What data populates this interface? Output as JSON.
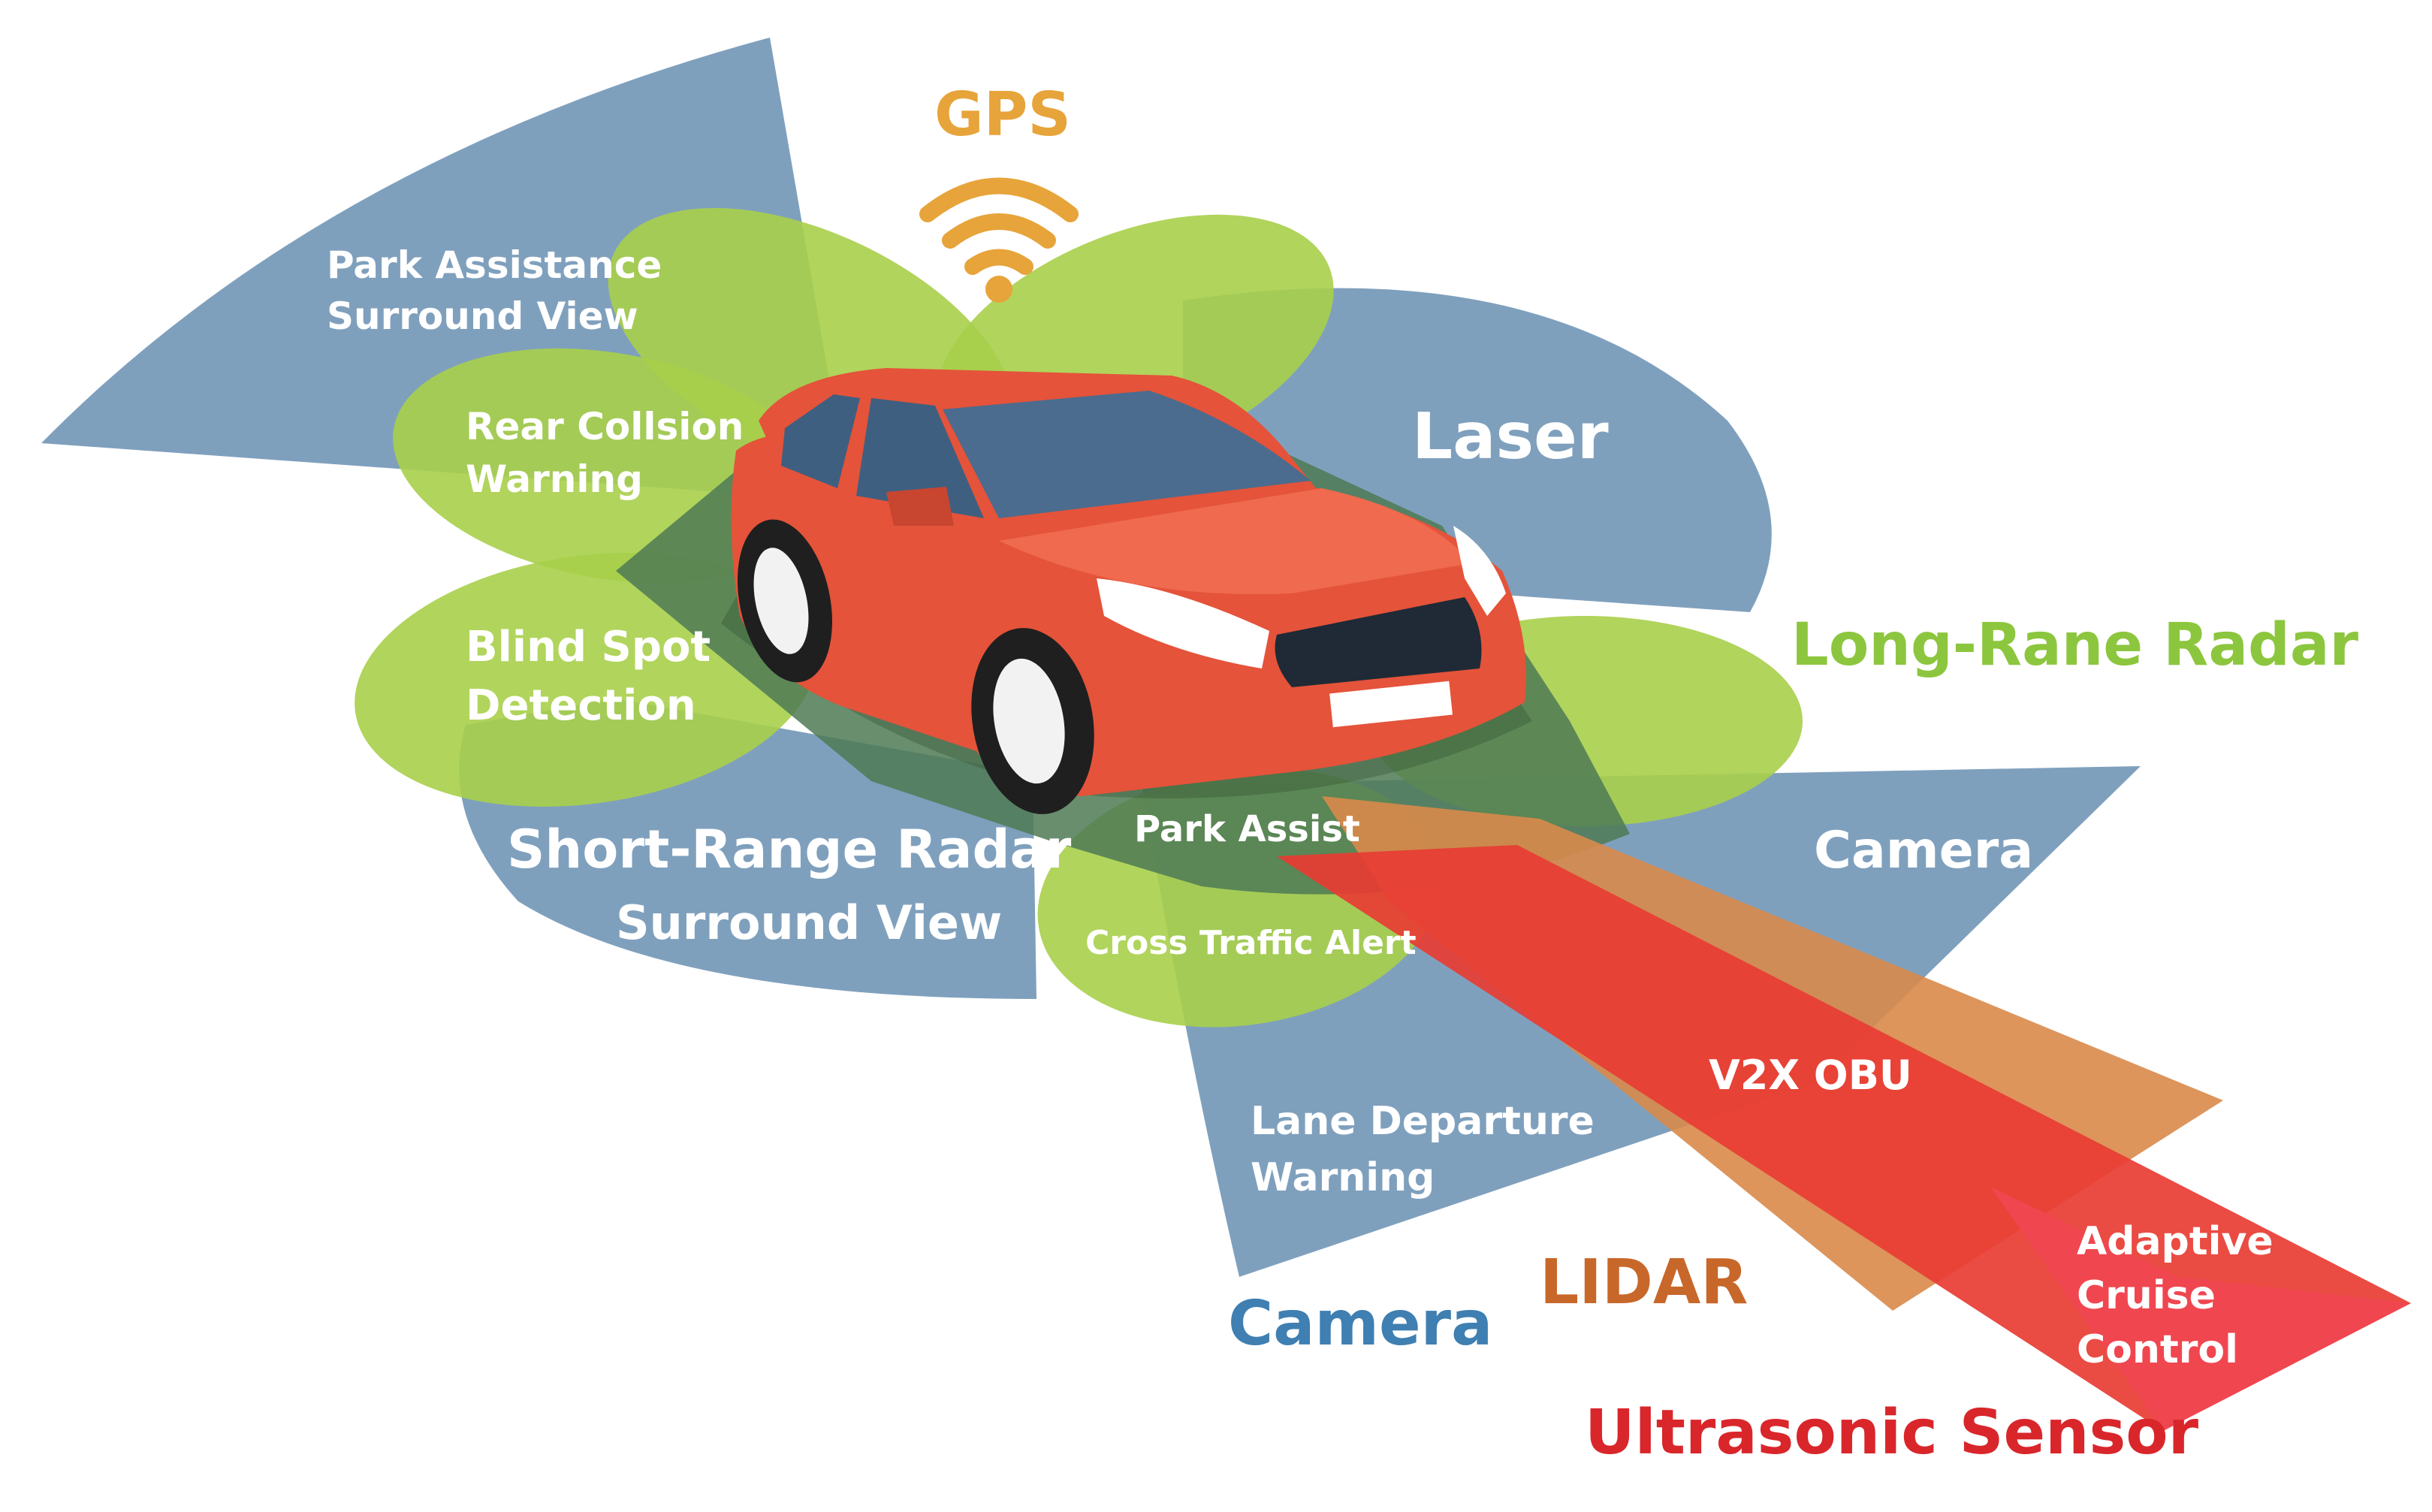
{
  "colors": {
    "blue_zone": "#7fa0bd",
    "green_zone": "#a9cf4a",
    "dark_overlap": "#4f7a55",
    "lidar_beam": "#d98a4a",
    "ultrasonic_beam": "#e83c33",
    "car_body": "#e4533a",
    "gps": "#e7a43a",
    "long_range_radar": "#8cc63e",
    "camera": "#3f7fb1",
    "lidar": "#c8672a",
    "ultrasonic": "#d9262b",
    "white_label": "#ffffff"
  },
  "icons": {
    "gps": "wifi-signal-icon"
  },
  "labels": {
    "gps": "GPS",
    "park_assistance_line1": "Park Assistance",
    "park_assistance_line2": "Surround View",
    "rear_collision_line1": "Rear Collsion",
    "rear_collision_line2": "Warning",
    "laser": "Laser",
    "blind_spot_line1": "Blind Spot",
    "blind_spot_line2": "Detection",
    "long_range_radar": "Long-Rane Radar",
    "short_range_radar": "Short-Range Radar",
    "short_range_surround": "Surround View",
    "park_assist": "Park Assist",
    "camera_right": "Camera",
    "cross_traffic": "Cross Traffic Alert",
    "v2x_obu": "V2X OBU",
    "lane_departure_line1": "Lane Departure",
    "lane_departure_line2": "Warning",
    "adaptive_line1": "Adaptive",
    "adaptive_line2": "Cruise",
    "adaptive_line3": "Control",
    "lidar": "LIDAR",
    "camera_bottom": "Camera",
    "ultrasonic_sensor": "Ultrasonic Sensor"
  }
}
